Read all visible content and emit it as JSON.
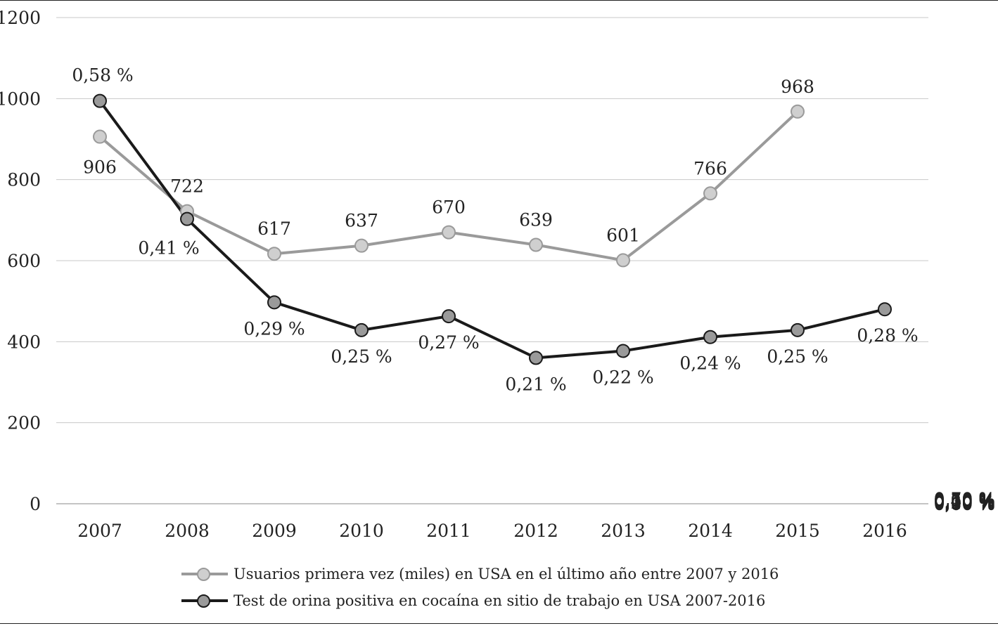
{
  "chart_data": {
    "type": "line",
    "categories": [
      "2007",
      "2008",
      "2009",
      "2010",
      "2011",
      "2012",
      "2013",
      "2014",
      "2015",
      "2016"
    ],
    "y_left": {
      "ticks": [
        "0",
        "200",
        "400",
        "600",
        "800",
        "1000",
        "1200"
      ],
      "range": [
        0,
        1200
      ]
    },
    "y_right": {
      "ticks": [
        "0,00 %",
        "0,10 %",
        "0,20 %",
        "0,30 %",
        "0,40 %",
        "0,50 %",
        "0,60 %",
        "0,70 %"
      ],
      "range": [
        0,
        0.7
      ]
    },
    "grid": true,
    "legend_position": "bottom",
    "series": [
      {
        "name": "Usuarios primera vez (miles) en USA en el último año entre 2007 y 2016",
        "axis": "left",
        "values": [
          906,
          722,
          617,
          637,
          670,
          639,
          601,
          766,
          968,
          null
        ],
        "labels": [
          "906",
          "722",
          "617",
          "637",
          "670",
          "639",
          "601",
          "766",
          "968",
          null
        ],
        "line_color": "#9a9a9a",
        "marker_fill": "#cfcfcf"
      },
      {
        "name": "Test de orina positiva en cocaína en sitio de trabajo en USA 2007-2016",
        "axis": "right",
        "values": [
          0.58,
          0.41,
          0.29,
          0.25,
          0.27,
          0.21,
          0.22,
          0.24,
          0.25,
          0.28
        ],
        "labels": [
          "0,58 %",
          "0,41 %",
          "0,29 %",
          "0,25 %",
          "0,27 %",
          "0,21 %",
          "0,22 %",
          "0,24 %",
          "0,25 %",
          "0,28 %"
        ],
        "line_color": "#1a1a1a",
        "marker_fill": "#9a9a9a"
      }
    ]
  }
}
